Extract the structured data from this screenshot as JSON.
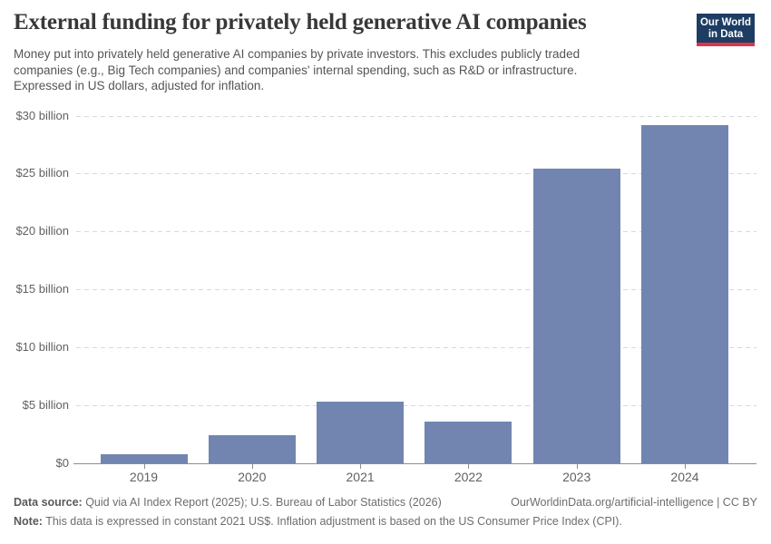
{
  "header": {
    "logo": {
      "line1": "Our World",
      "line2": "in Data",
      "background_color": "#1d3d63",
      "stripe_color": "#dc354a"
    }
  },
  "chart_data": {
    "type": "bar",
    "title": "External funding for privately held generative AI companies",
    "subtitle": "Money put into privately held generative AI companies by private investors. This excludes publicly traded companies (e.g., Big Tech companies) and companies' internal spending, such as R&D or infrastructure. Expressed in US dollars, adjusted for inflation.",
    "categories": [
      "2019",
      "2020",
      "2021",
      "2022",
      "2023",
      "2024"
    ],
    "values": [
      0.8,
      2.4,
      5.3,
      3.6,
      25.4,
      29.2
    ],
    "unit": "billion US$ (constant 2021 US$)",
    "xlabel": "",
    "ylabel": "",
    "ylim": [
      0,
      30
    ],
    "y_ticks": [
      {
        "value": 0,
        "label": "$0"
      },
      {
        "value": 5,
        "label": "$5 billion"
      },
      {
        "value": 10,
        "label": "$10 billion"
      },
      {
        "value": 15,
        "label": "$15 billion"
      },
      {
        "value": 20,
        "label": "$20 billion"
      },
      {
        "value": 25,
        "label": "$25 billion"
      },
      {
        "value": 30,
        "label": "$30 billion"
      }
    ],
    "grid": "dashed-horizontal",
    "legend": "none",
    "bar_color": "#7185b0"
  },
  "footer": {
    "source_label": "Data source:",
    "source_text": " Quid via AI Index Report (2025); U.S. Bureau of Labor Statistics (2026)",
    "attribution": "OurWorldinData.org/artificial-intelligence | CC BY",
    "note_label": "Note:",
    "note_text": " This data is expressed in constant 2021 US$. Inflation adjustment is based on the US Consumer Price Index (CPI)."
  }
}
